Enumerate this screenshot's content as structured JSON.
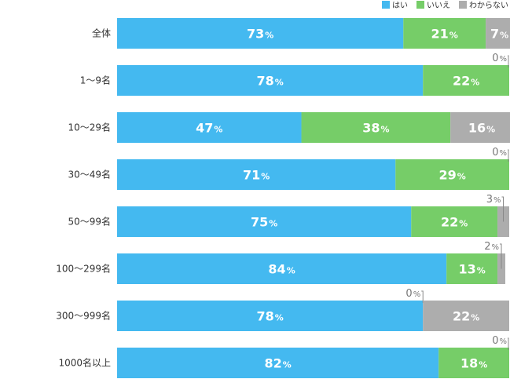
{
  "chart_data": {
    "type": "bar",
    "orientation": "horizontal",
    "stacked": true,
    "percent_stacked": true,
    "categories": [
      "全体",
      "1〜9名",
      "10〜29名",
      "30〜49名",
      "50〜99名",
      "100〜299名",
      "300〜999名",
      "1000名以上"
    ],
    "series": [
      {
        "name": "はい",
        "color": "#44b9f0",
        "values": [
          73,
          78,
          47,
          71,
          75,
          84,
          78,
          82
        ]
      },
      {
        "name": "いいえ",
        "color": "#76cd68",
        "values": [
          21,
          22,
          38,
          29,
          22,
          13,
          0,
          18
        ]
      },
      {
        "name": "わからない",
        "color": "#adadad",
        "values": [
          7,
          0,
          16,
          0,
          3,
          2,
          22,
          0
        ]
      }
    ],
    "unit": "%",
    "xlim": [
      0,
      100
    ],
    "grid": false,
    "legend": "top-right",
    "title": "",
    "xlabel": "",
    "ylabel": ""
  }
}
